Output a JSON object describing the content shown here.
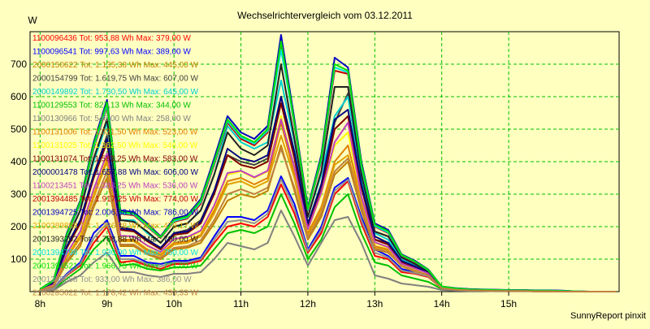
{
  "chart_data": {
    "type": "line",
    "title": "Wechselrichtervergleich vom 03.12.2011",
    "ylabel": "W",
    "footer": "SunnyReport pinxit",
    "ylim": [
      0,
      800
    ],
    "yticks": [
      100,
      200,
      300,
      400,
      500,
      600,
      700
    ],
    "xlim": [
      7.85,
      16.65
    ],
    "xticks": [
      8,
      9,
      10,
      11,
      12,
      13,
      14,
      15
    ],
    "xtick_labels": [
      "8h",
      "9h",
      "10h",
      "11h",
      "12h",
      "13h",
      "14h",
      "15h"
    ],
    "grid": true,
    "grid_color": "#00c000",
    "background": "#ffffc0",
    "x": [
      8.0,
      8.2,
      8.4,
      8.6,
      8.8,
      9.0,
      9.2,
      9.4,
      9.6,
      9.8,
      10.0,
      10.2,
      10.4,
      10.6,
      10.8,
      11.0,
      11.2,
      11.4,
      11.6,
      11.8,
      12.0,
      12.2,
      12.4,
      12.6,
      12.8,
      13.0,
      13.2,
      13.4,
      13.6,
      13.8,
      14.0,
      14.2,
      14.4,
      14.6,
      14.8,
      15.0,
      15.2,
      15.4,
      15.6,
      15.8,
      16.0,
      16.2,
      16.4,
      16.6
    ],
    "series": [
      {
        "name": "1100096436",
        "total": "953,88",
        "max": "379,00",
        "color": "#ff0000",
        "values": [
          4,
          8,
          50,
          80,
          150,
          200,
          90,
          95,
          80,
          70,
          85,
          85,
          95,
          150,
          200,
          210,
          200,
          230,
          330,
          240,
          120,
          180,
          300,
          340,
          210,
          110,
          100,
          60,
          55,
          45,
          10,
          6,
          4,
          3,
          2,
          2,
          2,
          1,
          1,
          0,
          0,
          0,
          0,
          0
        ]
      },
      {
        "name": "1100096541",
        "total": "997,63",
        "max": "389,00",
        "color": "#0000ff",
        "values": [
          4,
          10,
          55,
          90,
          180,
          220,
          110,
          110,
          90,
          85,
          95,
          95,
          105,
          170,
          230,
          230,
          220,
          250,
          355,
          270,
          130,
          200,
          320,
          350,
          230,
          130,
          110,
          70,
          60,
          50,
          12,
          6,
          4,
          3,
          2,
          2,
          2,
          1,
          1,
          0,
          0,
          0,
          0,
          0
        ]
      },
      {
        "name": "2000150622",
        "total": "1.135,38",
        "max": "445,00",
        "color": "#c08000",
        "values": [
          5,
          15,
          90,
          140,
          260,
          350,
          140,
          140,
          115,
          100,
          130,
          135,
          150,
          210,
          280,
          300,
          290,
          310,
          450,
          310,
          160,
          230,
          360,
          400,
          250,
          130,
          120,
          80,
          65,
          50,
          10,
          6,
          4,
          3,
          2,
          2,
          2,
          1,
          1,
          0,
          0,
          0,
          0,
          0
        ]
      },
      {
        "name": "2000154799",
        "total": "1.619,75",
        "max": "607,00",
        "color": "#404040",
        "values": [
          6,
          25,
          140,
          220,
          360,
          480,
          200,
          190,
          160,
          130,
          180,
          190,
          220,
          310,
          420,
          400,
          390,
          410,
          600,
          420,
          210,
          320,
          520,
          610,
          330,
          160,
          150,
          90,
          75,
          55,
          12,
          8,
          5,
          4,
          3,
          3,
          3,
          2,
          2,
          1,
          0,
          0,
          0,
          0
        ]
      },
      {
        "name": "2000149892",
        "total": "1.730,50",
        "max": "645,00",
        "color": "#00d0d0",
        "values": [
          7,
          30,
          160,
          250,
          400,
          520,
          220,
          220,
          180,
          150,
          200,
          210,
          250,
          360,
          510,
          460,
          440,
          460,
          650,
          460,
          230,
          360,
          540,
          600,
          350,
          180,
          160,
          100,
          80,
          60,
          14,
          9,
          6,
          5,
          4,
          3,
          3,
          2,
          2,
          1,
          0,
          0,
          0,
          0
        ]
      },
      {
        "name": "1100129553",
        "total": "827,13",
        "max": "344,00",
        "color": "#00c000",
        "values": [
          3,
          6,
          40,
          70,
          130,
          170,
          80,
          85,
          70,
          65,
          75,
          75,
          80,
          130,
          180,
          190,
          180,
          200,
          300,
          210,
          100,
          160,
          260,
          300,
          180,
          90,
          80,
          50,
          40,
          30,
          8,
          5,
          4,
          3,
          2,
          2,
          2,
          1,
          1,
          0,
          0,
          0,
          0,
          0
        ]
      },
      {
        "name": "1100130966",
        "total": "546,00",
        "max": "258,00",
        "color": "#808080",
        "values": [
          2,
          4,
          30,
          50,
          90,
          120,
          60,
          60,
          50,
          45,
          55,
          55,
          60,
          100,
          150,
          140,
          130,
          150,
          250,
          170,
          80,
          150,
          220,
          230,
          150,
          50,
          40,
          25,
          20,
          15,
          5,
          3,
          2,
          2,
          1,
          1,
          1,
          1,
          0,
          0,
          0,
          0,
          0,
          0
        ]
      },
      {
        "name": "1100131006",
        "total": "1.321,50",
        "max": "523,00",
        "color": "#e08000",
        "values": [
          5,
          20,
          110,
          170,
          300,
          410,
          160,
          160,
          130,
          115,
          150,
          155,
          175,
          250,
          340,
          350,
          330,
          350,
          520,
          360,
          180,
          260,
          400,
          450,
          280,
          140,
          130,
          80,
          65,
          50,
          11,
          7,
          5,
          4,
          3,
          2,
          2,
          1,
          1,
          0,
          0,
          0,
          0,
          0
        ]
      },
      {
        "name": "1100131025",
        "total": "1.362,50",
        "max": "546,00",
        "color": "#ffff00",
        "values": [
          5,
          20,
          115,
          180,
          310,
          420,
          170,
          170,
          140,
          120,
          160,
          165,
          185,
          260,
          360,
          370,
          350,
          370,
          540,
          380,
          190,
          300,
          450,
          490,
          290,
          150,
          135,
          85,
          70,
          55,
          12,
          8,
          5,
          4,
          3,
          2,
          2,
          1,
          1,
          0,
          0,
          0,
          0,
          0
        ]
      },
      {
        "name": "1100131074",
        "total": "1.583,25",
        "max": "583,00",
        "color": "#800000",
        "values": [
          6,
          25,
          135,
          210,
          350,
          460,
          190,
          185,
          155,
          130,
          175,
          180,
          210,
          300,
          420,
          390,
          380,
          400,
          580,
          410,
          200,
          310,
          500,
          540,
          320,
          160,
          145,
          90,
          75,
          55,
          12,
          8,
          5,
          4,
          3,
          3,
          3,
          2,
          2,
          1,
          0,
          0,
          0,
          0
        ]
      },
      {
        "name": "2000001478",
        "total": "1.657,88",
        "max": "606,00",
        "color": "#000080",
        "values": [
          6,
          26,
          140,
          220,
          360,
          470,
          195,
          190,
          160,
          135,
          180,
          185,
          215,
          310,
          440,
          410,
          400,
          420,
          600,
          430,
          210,
          330,
          530,
          560,
          330,
          170,
          150,
          95,
          78,
          58,
          13,
          8,
          5,
          4,
          3,
          3,
          3,
          2,
          2,
          1,
          0,
          0,
          0,
          0
        ]
      },
      {
        "name": "1100213451",
        "total": "1.388,25",
        "max": "536,00",
        "color": "#c040c0",
        "values": [
          5,
          21,
          118,
          185,
          315,
          425,
          172,
          170,
          142,
          122,
          162,
          168,
          188,
          265,
          365,
          372,
          352,
          372,
          530,
          382,
          192,
          305,
          460,
          520,
          292,
          152,
          137,
          86,
          71,
          56,
          12,
          8,
          5,
          4,
          3,
          2,
          2,
          1,
          1,
          0,
          0,
          0,
          0,
          0
        ]
      },
      {
        "name": "2001394485",
        "total": "1.917,25",
        "max": "774,00",
        "color": "#c00000",
        "values": [
          7,
          32,
          170,
          270,
          440,
          570,
          240,
          235,
          200,
          165,
          215,
          225,
          270,
          390,
          520,
          470,
          450,
          490,
          760,
          510,
          250,
          400,
          680,
          670,
          380,
          200,
          180,
          110,
          90,
          65,
          15,
          10,
          7,
          6,
          5,
          4,
          4,
          3,
          3,
          2,
          1,
          0,
          0,
          0
        ]
      },
      {
        "name": "2001394725",
        "total": "2.006,38",
        "max": "786,00",
        "color": "#0000c0",
        "values": [
          8,
          35,
          180,
          280,
          460,
          590,
          250,
          245,
          210,
          170,
          225,
          235,
          285,
          410,
          540,
          490,
          470,
          510,
          790,
          530,
          260,
          420,
          720,
          690,
          400,
          210,
          190,
          115,
          95,
          68,
          16,
          11,
          8,
          7,
          6,
          5,
          5,
          4,
          4,
          3,
          1,
          0,
          0,
          0
        ]
      },
      {
        "name": "2100289888",
        "total": "1.286,38",
        "max": "479,17",
        "color": "#e0a000",
        "values": [
          5,
          18,
          105,
          165,
          290,
          400,
          155,
          155,
          125,
          110,
          145,
          150,
          170,
          240,
          330,
          340,
          320,
          340,
          480,
          350,
          170,
          250,
          390,
          420,
          270,
          135,
          125,
          78,
          62,
          48,
          10,
          7,
          5,
          4,
          3,
          2,
          2,
          1,
          1,
          0,
          0,
          0,
          0,
          0
        ]
      },
      {
        "name": "2001393202",
        "total": "1.788,88",
        "max": "700,00",
        "color": "#202020",
        "values": [
          7,
          30,
          160,
          250,
          410,
          530,
          220,
          215,
          185,
          150,
          200,
          210,
          250,
          360,
          490,
          440,
          420,
          450,
          700,
          470,
          230,
          370,
          630,
          630,
          360,
          185,
          170,
          105,
          85,
          62,
          14,
          9,
          6,
          5,
          4,
          3,
          3,
          2,
          2,
          1,
          0,
          0,
          0,
          0
        ]
      },
      {
        "name": "2001394798",
        "total": "1.930,00",
        "max": "750,00",
        "color": "#00e0e0",
        "values": [
          7,
          33,
          172,
          272,
          445,
          575,
          242,
          238,
          202,
          167,
          217,
          228,
          275,
          395,
          525,
          475,
          455,
          495,
          745,
          515,
          252,
          405,
          690,
          675,
          385,
          202,
          182,
          112,
          92,
          66,
          15,
          10,
          7,
          6,
          5,
          4,
          4,
          3,
          3,
          2,
          1,
          0,
          0,
          0
        ]
      },
      {
        "name": "2001394521",
        "total": "1.966,75",
        "max": "771,00",
        "color": "#00e000",
        "values": [
          8,
          34,
          176,
          276,
          452,
          582,
          246,
          241,
          206,
          168,
          221,
          231,
          280,
          400,
          530,
          480,
          460,
          500,
          770,
          520,
          255,
          412,
          700,
          680,
          392,
          206,
          186,
          113,
          93,
          67,
          16,
          10,
          7,
          6,
          5,
          4,
          4,
          3,
          3,
          2,
          1,
          0,
          0,
          0
        ]
      },
      {
        "name": "2001395658",
        "total": "933,00",
        "max": "386,00",
        "color": "#909090",
        "values": [
          4,
          9,
          52,
          85,
          165,
          210,
          100,
          100,
          85,
          78,
          90,
          90,
          100,
          160,
          215,
          220,
          210,
          240,
          345,
          255,
          125,
          190,
          310,
          345,
          220,
          120,
          105,
          65,
          57,
          47,
          11,
          6,
          4,
          3,
          2,
          2,
          2,
          1,
          1,
          0,
          0,
          0,
          0,
          0
        ]
      },
      {
        "name": "2100285622",
        "total": "1.178,42",
        "max": "436,33",
        "color": "#c08040",
        "values": [
          5,
          16,
          95,
          150,
          270,
          370,
          145,
          145,
          118,
          104,
          135,
          140,
          158,
          220,
          300,
          315,
          300,
          320,
          440,
          320,
          165,
          240,
          370,
          410,
          260,
          132,
          122,
          80,
          64,
          50,
          10,
          6,
          4,
          3,
          2,
          2,
          2,
          1,
          1,
          0,
          0,
          0,
          0,
          0
        ]
      }
    ]
  }
}
